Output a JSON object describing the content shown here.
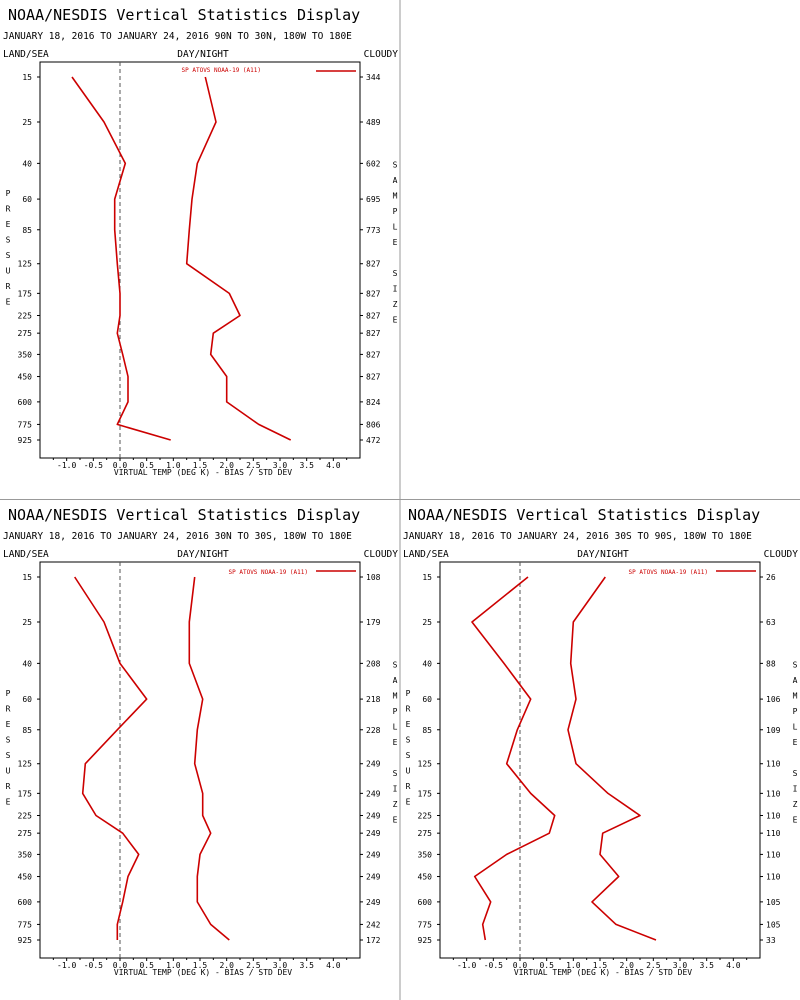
{
  "panel_titles": {
    "top_left": "NOAA/NESDIS Vertical Statistics Display",
    "bottom_left": "NOAA/NESDIS Vertical Statistics Display",
    "bottom_right": "NOAA/NESDIS Vertical Statistics Display"
  },
  "panel_subtitles": {
    "top_left": "JANUARY 18, 2016 TO JANUARY 24, 2016  90N TO 30N, 180W TO 180E",
    "bottom_left": "JANUARY 18, 2016 TO JANUARY 24, 2016  30N TO 30S, 180W TO 180E",
    "bottom_right": "JANUARY 18, 2016 TO JANUARY 24, 2016  30S TO 90S, 180W TO 180E"
  },
  "header_labels": {
    "land_sea": "LAND/SEA",
    "day_night": "DAY/NIGHT",
    "cloudy": "CLOUDY"
  },
  "ylabel_left": "PRESSURE",
  "ylabel_right": "SAMPLE SIZE",
  "xlabel": "VIRTUAL TEMP (DEG K) - BIAS / STD DEV",
  "x_ticks": [
    "-1.0",
    "-0.5",
    "0.0",
    "0.5",
    "1.0",
    "1.5",
    "2.0",
    "2.5",
    "3.0",
    "3.5",
    "4.0"
  ],
  "legend_label": "SP ATOVS NOAA-19 (A11)",
  "colors": {
    "series": "#cc0000",
    "axes": "#000000",
    "divider": "#999999",
    "zero_line": "#555555"
  },
  "chart_data": [
    {
      "type": "line",
      "region": "90N TO 30N",
      "x_range": [
        -1.5,
        4.5
      ],
      "pressure_levels": [
        15,
        25,
        40,
        60,
        85,
        125,
        175,
        225,
        275,
        350,
        450,
        600,
        775,
        925
      ],
      "series": [
        {
          "name": "SP ATOVS NOAA-19 (A11)",
          "stat": "bias",
          "values": [
            -0.9,
            -0.3,
            0.1,
            -0.1,
            -0.1,
            -0.05,
            0.0,
            0.0,
            -0.05,
            0.05,
            0.15,
            0.15,
            -0.05,
            0.95
          ]
        },
        {
          "name": "",
          "stat": "std_dev",
          "values": [
            1.6,
            1.8,
            1.45,
            1.35,
            1.3,
            1.25,
            2.05,
            2.25,
            1.75,
            1.7,
            2.0,
            2.0,
            2.6,
            3.2
          ]
        }
      ],
      "sample_size": [
        344,
        489,
        602,
        695,
        773,
        827,
        827,
        827,
        827,
        827,
        827,
        824,
        806,
        472
      ]
    },
    {
      "type": "line",
      "region": "30N TO 30S",
      "x_range": [
        -1.5,
        4.5
      ],
      "pressure_levels": [
        15,
        25,
        40,
        60,
        85,
        125,
        175,
        225,
        275,
        350,
        450,
        600,
        775,
        925
      ],
      "series": [
        {
          "name": "SP ATOVS NOAA-19 (A11)",
          "stat": "bias",
          "values": [
            -0.85,
            -0.3,
            0.0,
            0.5,
            -0.05,
            -0.65,
            -0.7,
            -0.45,
            0.05,
            0.35,
            0.15,
            0.05,
            -0.05,
            -0.05
          ]
        },
        {
          "name": "",
          "stat": "std_dev",
          "values": [
            1.4,
            1.3,
            1.3,
            1.55,
            1.45,
            1.4,
            1.55,
            1.55,
            1.7,
            1.5,
            1.45,
            1.45,
            1.7,
            2.05
          ]
        }
      ],
      "sample_size": [
        108,
        179,
        208,
        218,
        228,
        249,
        249,
        249,
        249,
        249,
        249,
        249,
        242,
        172
      ]
    },
    {
      "type": "line",
      "region": "30S TO 90S",
      "x_range": [
        -1.5,
        4.5
      ],
      "pressure_levels": [
        15,
        25,
        40,
        60,
        85,
        125,
        175,
        225,
        275,
        350,
        450,
        600,
        775,
        925
      ],
      "series": [
        {
          "name": "SP ATOVS NOAA-19 (A11)",
          "stat": "bias",
          "values": [
            0.15,
            -0.9,
            -0.3,
            0.2,
            -0.05,
            -0.25,
            0.2,
            0.65,
            0.55,
            -0.25,
            -0.85,
            -0.55,
            -0.7,
            -0.65
          ]
        },
        {
          "name": "",
          "stat": "std_dev",
          "values": [
            1.6,
            1.0,
            0.95,
            1.05,
            0.9,
            1.05,
            1.65,
            2.25,
            1.55,
            1.5,
            1.85,
            1.35,
            1.8,
            2.55
          ]
        }
      ],
      "sample_size": [
        26,
        63,
        88,
        106,
        109,
        110,
        110,
        110,
        110,
        110,
        110,
        105,
        105,
        33
      ]
    }
  ]
}
